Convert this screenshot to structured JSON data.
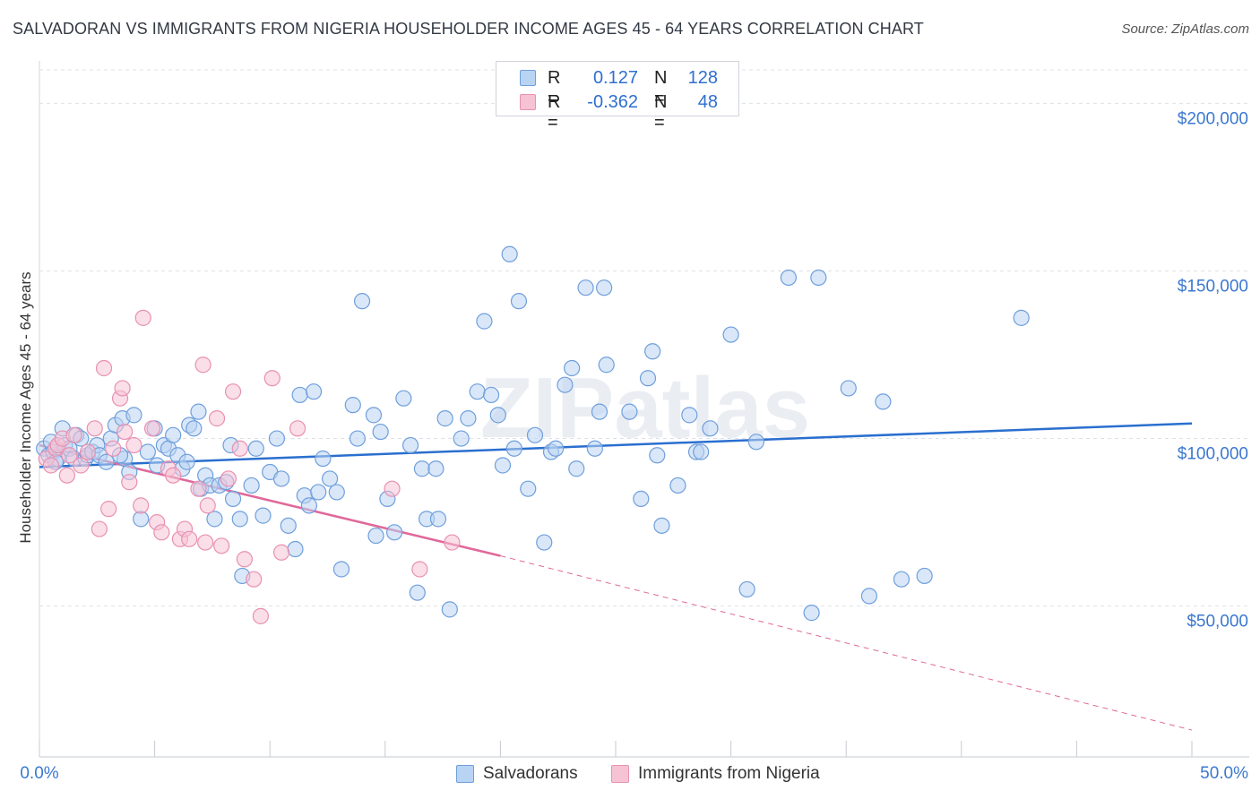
{
  "title": "SALVADORAN VS IMMIGRANTS FROM NIGERIA HOUSEHOLDER INCOME AGES 45 - 64 YEARS CORRELATION CHART",
  "source": "Source: ZipAtlas.com",
  "watermark": "ZIPatlas",
  "colors": {
    "blue_fill": "#b9d3f3",
    "blue_stroke": "#6f9fdc",
    "blue_line": "#2a6fcf",
    "pink_fill": "#f6c3d5",
    "pink_stroke": "#e891b1",
    "pink_line": "#e0689a",
    "tick_label": "#3b78d0",
    "grid": "#dde1e6"
  },
  "legend_top": [
    {
      "label": "R =",
      "r": "0.127",
      "n_label": "N =",
      "n": "128",
      "color": "blue"
    },
    {
      "label": "R =",
      "r": "-0.362",
      "n_label": "N =",
      "n": "48",
      "color": "pink"
    }
  ],
  "legend_bottom": [
    {
      "label": "Salvadorans",
      "color": "blue"
    },
    {
      "label": "Immigrants from Nigeria",
      "color": "pink"
    }
  ],
  "chart_data": {
    "type": "scatter",
    "title": "SALVADORAN VS IMMIGRANTS FROM NIGERIA HOUSEHOLDER INCOME AGES 45 - 64 YEARS CORRELATION CHART",
    "xlabel": "",
    "ylabel": "Householder Income Ages 45 - 64 years",
    "x_tick_labels": [
      "0.0%",
      "50.0%"
    ],
    "y_tick_labels": [
      "$50,000",
      "$100,000",
      "$150,000",
      "$200,000"
    ],
    "y_ticks": [
      50000,
      100000,
      150000,
      200000
    ],
    "xlim": [
      0,
      50
    ],
    "ylim": [
      5000,
      210000
    ],
    "grid": true,
    "legend_position": "top-center",
    "series": [
      {
        "name": "Salvadorans",
        "color": "blue",
        "r": 0.127,
        "n": 128,
        "trend": {
          "x": [
            0,
            50
          ],
          "y": [
            91500,
            104500
          ]
        },
        "points": [
          [
            0.2,
            97000
          ],
          [
            0.4,
            95000
          ],
          [
            0.5,
            99000
          ],
          [
            0.6,
            96000
          ],
          [
            0.8,
            94000
          ],
          [
            1.0,
            103000
          ],
          [
            1.1,
            98000
          ],
          [
            1.3,
            97000
          ],
          [
            1.5,
            94000
          ],
          [
            1.6,
            101000
          ],
          [
            1.8,
            100000
          ],
          [
            2.0,
            94000
          ],
          [
            2.1,
            95000
          ],
          [
            2.3,
            96000
          ],
          [
            2.5,
            98000
          ],
          [
            2.6,
            95000
          ],
          [
            2.9,
            93000
          ],
          [
            3.1,
            100000
          ],
          [
            3.3,
            104000
          ],
          [
            3.6,
            106000
          ],
          [
            3.7,
            94000
          ],
          [
            3.9,
            90000
          ],
          [
            4.1,
            107000
          ],
          [
            4.4,
            76000
          ],
          [
            4.7,
            96000
          ],
          [
            5.0,
            103000
          ],
          [
            5.1,
            92000
          ],
          [
            5.4,
            98000
          ],
          [
            5.6,
            97000
          ],
          [
            5.8,
            101000
          ],
          [
            6.0,
            95000
          ],
          [
            6.2,
            91000
          ],
          [
            6.4,
            93000
          ],
          [
            6.5,
            104000
          ],
          [
            6.7,
            103000
          ],
          [
            7.0,
            85000
          ],
          [
            7.2,
            89000
          ],
          [
            7.4,
            86000
          ],
          [
            7.6,
            76000
          ],
          [
            7.8,
            86000
          ],
          [
            8.1,
            87000
          ],
          [
            8.3,
            98000
          ],
          [
            8.4,
            82000
          ],
          [
            8.7,
            76000
          ],
          [
            8.8,
            59000
          ],
          [
            9.2,
            86000
          ],
          [
            9.4,
            97000
          ],
          [
            9.7,
            77000
          ],
          [
            10.0,
            90000
          ],
          [
            10.3,
            100000
          ],
          [
            10.5,
            88000
          ],
          [
            10.8,
            74000
          ],
          [
            11.1,
            67000
          ],
          [
            11.3,
            113000
          ],
          [
            11.5,
            83000
          ],
          [
            11.7,
            80000
          ],
          [
            11.9,
            114000
          ],
          [
            12.1,
            84000
          ],
          [
            12.3,
            94000
          ],
          [
            12.6,
            88000
          ],
          [
            12.9,
            84000
          ],
          [
            13.1,
            61000
          ],
          [
            13.6,
            110000
          ],
          [
            13.8,
            100000
          ],
          [
            14.0,
            141000
          ],
          [
            14.5,
            107000
          ],
          [
            14.6,
            71000
          ],
          [
            14.8,
            102000
          ],
          [
            15.1,
            82000
          ],
          [
            15.4,
            72000
          ],
          [
            15.8,
            112000
          ],
          [
            16.1,
            98000
          ],
          [
            16.4,
            54000
          ],
          [
            16.6,
            91000
          ],
          [
            16.8,
            76000
          ],
          [
            17.3,
            76000
          ],
          [
            17.2,
            91000
          ],
          [
            17.6,
            106000
          ],
          [
            17.8,
            49000
          ],
          [
            18.3,
            100000
          ],
          [
            18.6,
            106000
          ],
          [
            19.0,
            114000
          ],
          [
            19.3,
            135000
          ],
          [
            19.6,
            113000
          ],
          [
            19.9,
            107000
          ],
          [
            20.1,
            92000
          ],
          [
            20.4,
            155000
          ],
          [
            20.6,
            97000
          ],
          [
            20.8,
            141000
          ],
          [
            21.2,
            85000
          ],
          [
            21.5,
            101000
          ],
          [
            21.9,
            69000
          ],
          [
            22.2,
            96000
          ],
          [
            22.4,
            97000
          ],
          [
            22.8,
            116000
          ],
          [
            23.1,
            121000
          ],
          [
            23.3,
            91000
          ],
          [
            23.7,
            145000
          ],
          [
            24.1,
            97000
          ],
          [
            24.3,
            108000
          ],
          [
            24.5,
            145000
          ],
          [
            24.6,
            122000
          ],
          [
            25.6,
            108000
          ],
          [
            26.1,
            82000
          ],
          [
            26.4,
            118000
          ],
          [
            26.6,
            126000
          ],
          [
            26.8,
            95000
          ],
          [
            27.0,
            74000
          ],
          [
            27.7,
            86000
          ],
          [
            28.2,
            107000
          ],
          [
            28.5,
            96000
          ],
          [
            28.7,
            96000
          ],
          [
            29.1,
            103000
          ],
          [
            30.0,
            131000
          ],
          [
            30.7,
            55000
          ],
          [
            31.1,
            99000
          ],
          [
            32.5,
            148000
          ],
          [
            33.5,
            48000
          ],
          [
            33.8,
            148000
          ],
          [
            35.1,
            115000
          ],
          [
            36.0,
            53000
          ],
          [
            36.6,
            111000
          ],
          [
            37.4,
            58000
          ],
          [
            38.4,
            59000
          ],
          [
            42.6,
            136000
          ],
          [
            0.7,
            93000
          ],
          [
            3.5,
            95000
          ],
          [
            6.9,
            108000
          ]
        ]
      },
      {
        "name": "Immigrants from Nigeria",
        "color": "pink",
        "r": -0.362,
        "n": 48,
        "trend": {
          "x": [
            0,
            20
          ],
          "y": [
            98000,
            65000
          ]
        },
        "trend_dashed": {
          "x": [
            20,
            50
          ],
          "y": [
            65000,
            13000
          ]
        },
        "points": [
          [
            0.3,
            94000
          ],
          [
            0.5,
            92000
          ],
          [
            0.7,
            97000
          ],
          [
            0.8,
            98000
          ],
          [
            1.0,
            100000
          ],
          [
            1.2,
            89000
          ],
          [
            1.3,
            95000
          ],
          [
            1.5,
            101000
          ],
          [
            1.8,
            92000
          ],
          [
            2.1,
            96000
          ],
          [
            2.4,
            103000
          ],
          [
            2.6,
            73000
          ],
          [
            2.8,
            121000
          ],
          [
            3.0,
            79000
          ],
          [
            3.2,
            97000
          ],
          [
            3.5,
            112000
          ],
          [
            3.7,
            102000
          ],
          [
            3.9,
            87000
          ],
          [
            4.1,
            98000
          ],
          [
            4.4,
            80000
          ],
          [
            4.5,
            136000
          ],
          [
            4.9,
            103000
          ],
          [
            5.1,
            75000
          ],
          [
            5.3,
            72000
          ],
          [
            5.6,
            91000
          ],
          [
            5.8,
            89000
          ],
          [
            6.1,
            70000
          ],
          [
            6.3,
            73000
          ],
          [
            6.5,
            70000
          ],
          [
            6.9,
            85000
          ],
          [
            7.1,
            122000
          ],
          [
            7.3,
            80000
          ],
          [
            7.7,
            106000
          ],
          [
            7.9,
            68000
          ],
          [
            8.2,
            88000
          ],
          [
            8.4,
            114000
          ],
          [
            8.7,
            97000
          ],
          [
            8.9,
            64000
          ],
          [
            9.3,
            58000
          ],
          [
            9.6,
            47000
          ],
          [
            10.1,
            118000
          ],
          [
            10.5,
            66000
          ],
          [
            11.2,
            103000
          ],
          [
            15.3,
            85000
          ],
          [
            16.5,
            61000
          ],
          [
            17.9,
            69000
          ],
          [
            3.6,
            115000
          ],
          [
            7.2,
            69000
          ]
        ]
      }
    ]
  }
}
